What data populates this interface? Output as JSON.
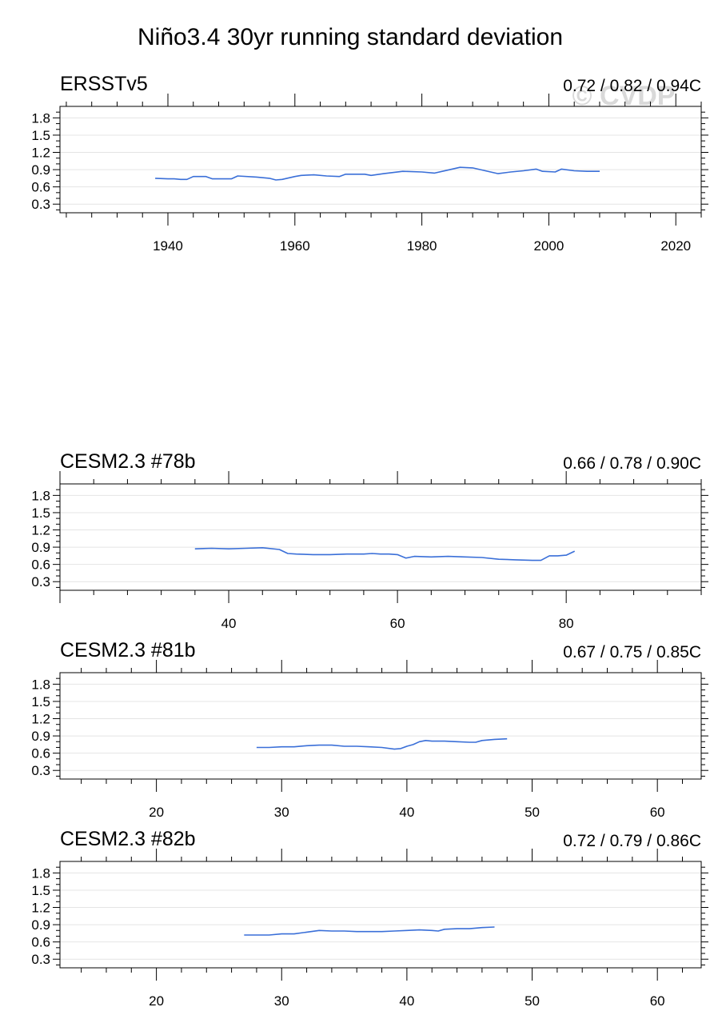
{
  "title": "Niño3.4 30yr running standard deviation",
  "watermark": "© CVDP",
  "colors": {
    "line": "#3a6fd8",
    "grid": "#e4e4e4",
    "axis": "#000000"
  },
  "chart_data": [
    {
      "type": "line",
      "title": "ERSSTv5",
      "right_title": "0.72 / 0.82 / 0.94C",
      "xlim": [
        1923,
        2024
      ],
      "ylim": [
        0.15,
        2.0
      ],
      "xticks": [
        1940,
        1960,
        1980,
        2000,
        2020
      ],
      "yticks": [
        0.3,
        0.6,
        0.9,
        1.2,
        1.5,
        1.8
      ],
      "grid": true,
      "x": [
        1938,
        1940,
        1941,
        1942,
        1943,
        1944,
        1946,
        1947,
        1950,
        1951,
        1954,
        1956,
        1957,
        1958,
        1960,
        1961,
        1963,
        1965,
        1967,
        1968,
        1971,
        1972,
        1974,
        1977,
        1980,
        1982,
        1984,
        1986,
        1988,
        1990,
        1992,
        1994,
        1996,
        1998,
        1999,
        2001,
        2002,
        2004,
        2006,
        2008
      ],
      "values": [
        0.75,
        0.74,
        0.74,
        0.73,
        0.73,
        0.78,
        0.78,
        0.74,
        0.74,
        0.79,
        0.77,
        0.75,
        0.72,
        0.73,
        0.78,
        0.8,
        0.81,
        0.79,
        0.78,
        0.82,
        0.82,
        0.8,
        0.83,
        0.87,
        0.86,
        0.84,
        0.89,
        0.94,
        0.93,
        0.88,
        0.83,
        0.86,
        0.88,
        0.91,
        0.87,
        0.86,
        0.91,
        0.88,
        0.87,
        0.87
      ]
    },
    {
      "type": "line",
      "title": "CESM2.3 #78b",
      "right_title": "0.66 / 0.78 / 0.90C",
      "xlim": [
        20,
        96
      ],
      "ylim": [
        0.15,
        2.0
      ],
      "xticks": [
        40,
        60,
        80
      ],
      "yticks": [
        0.3,
        0.6,
        0.9,
        1.2,
        1.5,
        1.8
      ],
      "grid": true,
      "x": [
        36,
        38,
        40,
        42,
        44,
        46,
        47,
        48,
        50,
        52,
        54,
        56,
        57,
        58,
        59,
        60,
        61,
        62,
        64,
        66,
        68,
        70,
        72,
        74,
        76,
        77,
        78,
        79,
        80,
        81
      ],
      "values": [
        0.87,
        0.88,
        0.87,
        0.88,
        0.89,
        0.86,
        0.79,
        0.78,
        0.77,
        0.77,
        0.78,
        0.78,
        0.79,
        0.78,
        0.78,
        0.77,
        0.71,
        0.74,
        0.73,
        0.74,
        0.73,
        0.72,
        0.69,
        0.68,
        0.67,
        0.67,
        0.75,
        0.75,
        0.76,
        0.83
      ]
    },
    {
      "type": "line",
      "title": "CESM2.3 #81b",
      "right_title": "0.67 / 0.75 / 0.85C",
      "xlim": [
        12.3,
        63.5
      ],
      "ylim": [
        0.15,
        2.0
      ],
      "xticks": [
        20,
        30,
        40,
        50,
        60
      ],
      "yticks": [
        0.3,
        0.6,
        0.9,
        1.2,
        1.5,
        1.8
      ],
      "grid": true,
      "x": [
        28,
        29,
        30,
        31,
        32,
        33,
        34,
        35,
        36,
        37,
        38,
        39,
        39.5,
        40,
        40.5,
        41,
        41.5,
        42,
        43,
        44,
        45,
        45.5,
        46,
        47,
        48
      ],
      "values": [
        0.7,
        0.7,
        0.71,
        0.71,
        0.73,
        0.74,
        0.74,
        0.72,
        0.72,
        0.71,
        0.7,
        0.67,
        0.68,
        0.72,
        0.75,
        0.8,
        0.82,
        0.81,
        0.81,
        0.8,
        0.79,
        0.79,
        0.82,
        0.84,
        0.85
      ]
    },
    {
      "type": "line",
      "title": "CESM2.3 #82b",
      "right_title": "0.72 / 0.79 / 0.86C",
      "xlim": [
        12.3,
        63.5
      ],
      "ylim": [
        0.15,
        2.0
      ],
      "xticks": [
        20,
        30,
        40,
        50,
        60
      ],
      "yticks": [
        0.3,
        0.6,
        0.9,
        1.2,
        1.5,
        1.8
      ],
      "grid": true,
      "x": [
        27,
        28,
        29,
        30,
        31,
        32,
        33,
        34,
        35,
        36,
        37,
        38,
        39,
        40,
        41,
        42,
        42.5,
        43,
        44,
        45,
        46,
        47
      ],
      "values": [
        0.72,
        0.72,
        0.72,
        0.74,
        0.74,
        0.77,
        0.8,
        0.79,
        0.79,
        0.78,
        0.78,
        0.78,
        0.79,
        0.8,
        0.81,
        0.8,
        0.79,
        0.82,
        0.83,
        0.83,
        0.85,
        0.86
      ]
    }
  ]
}
